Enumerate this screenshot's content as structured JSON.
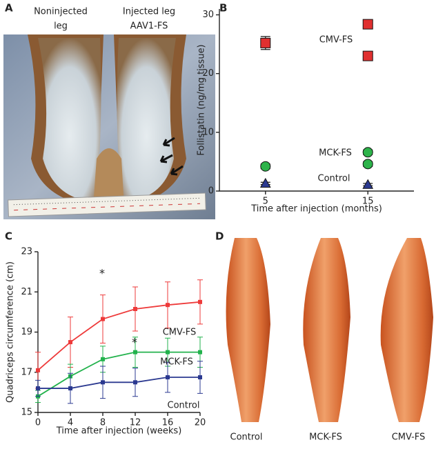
{
  "panel_labels": [
    "A",
    "B",
    "C",
    "D"
  ],
  "photo_a": {
    "labels": [
      [
        "Noninjected",
        "leg"
      ],
      [
        "Injected leg",
        "AAV1-FS"
      ]
    ]
  },
  "photo_d": {
    "labels": [
      "Control",
      "MCK-FS",
      "CMV-FS"
    ]
  },
  "chart_data": [
    {
      "type": "scatter",
      "xlabel": "Time  after injection (months)",
      "ylabel": "Follistatin (ng/mg tissue)",
      "xlim": [
        0.5,
        19.5
      ],
      "xticks": [
        5,
        15
      ],
      "ylim": [
        0,
        31
      ],
      "yticks": [
        0,
        10,
        20,
        30
      ],
      "series": [
        {
          "name": "CMV-FS",
          "color": "#e03030",
          "marker": "square",
          "x": [
            5,
            15,
            15
          ],
          "values": [
            25.2,
            28.4,
            23.0
          ],
          "errors": [
            1.1,
            0.6,
            0.6
          ]
        },
        {
          "name": "MCK-FS",
          "color": "#2db34a",
          "marker": "circle",
          "x": [
            5,
            15,
            15
          ],
          "values": [
            4.2,
            6.6,
            4.6
          ],
          "errors": [
            0.4,
            0.4,
            0.4
          ]
        },
        {
          "name": "Control",
          "color": "#2b3990",
          "marker": "triangle",
          "x": [
            5,
            15
          ],
          "values": [
            1.3,
            1.1
          ],
          "errors": [
            0.2,
            0.2
          ]
        }
      ]
    },
    {
      "type": "line",
      "xlabel": "Time after injection (weeks)",
      "ylabel": "Quadriceps circumference (cm)",
      "xlim": [
        0,
        20
      ],
      "xticks": [
        0,
        4,
        8,
        12,
        16,
        20
      ],
      "ylim": [
        15,
        23
      ],
      "yticks": [
        15,
        17,
        19,
        21,
        23
      ],
      "annotations": [
        "*",
        "*"
      ],
      "series": [
        {
          "name": "CMV-FS",
          "color": "#ee3a3a",
          "x": [
            0,
            4,
            8,
            12,
            16,
            20
          ],
          "values": [
            17.1,
            18.5,
            19.65,
            20.15,
            20.35,
            20.5
          ],
          "errors": [
            0.9,
            1.25,
            1.2,
            1.1,
            1.15,
            1.1
          ]
        },
        {
          "name": "MCK-FS",
          "color": "#22b24c",
          "x": [
            0,
            4,
            8,
            12,
            16,
            20
          ],
          "values": [
            15.8,
            16.8,
            17.65,
            18.0,
            18.0,
            18.0
          ],
          "errors": [
            0.3,
            0.6,
            0.65,
            0.75,
            0.7,
            0.75
          ]
        },
        {
          "name": "Control",
          "color": "#2b3990",
          "x": [
            0,
            4,
            8,
            12,
            16,
            20
          ],
          "values": [
            16.2,
            16.2,
            16.5,
            16.5,
            16.75,
            16.75
          ],
          "errors": [
            0.4,
            0.75,
            0.8,
            0.7,
            0.75,
            0.8
          ]
        }
      ]
    }
  ]
}
